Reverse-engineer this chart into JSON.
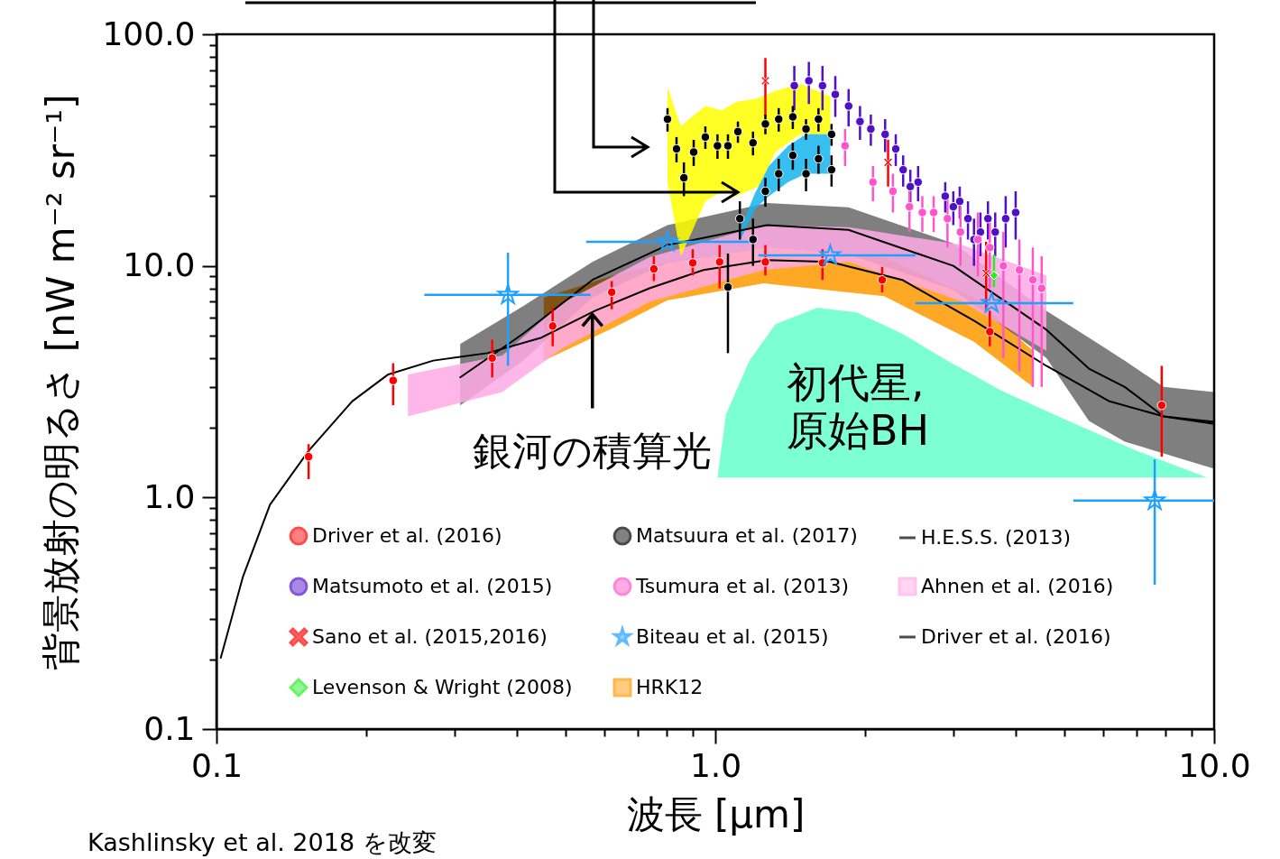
{
  "chart_data": {
    "type": "scatter",
    "xlabel": "波長 [μm]",
    "ylabel": "背景放射の明るさ [nW m⁻² sr⁻¹]",
    "log": "xy",
    "grid": false,
    "legend": "bottom",
    "xlim": [
      0.1,
      10
    ],
    "ylim": [
      0.1,
      100
    ],
    "xticks": [
      {
        "value": 0.1,
        "label": "0.1"
      },
      {
        "value": 0.2,
        "label": null
      },
      {
        "value": 0.3,
        "label": null
      },
      {
        "value": 0.4,
        "label": null
      },
      {
        "value": 0.5,
        "label": null
      },
      {
        "value": 0.6,
        "label": null
      },
      {
        "value": 0.7,
        "label": null
      },
      {
        "value": 0.8,
        "label": null
      },
      {
        "value": 0.9,
        "label": null
      },
      {
        "value": 1,
        "label": "1.0"
      },
      {
        "value": 2,
        "label": null
      },
      {
        "value": 3,
        "label": null
      },
      {
        "value": 4,
        "label": null
      },
      {
        "value": 5,
        "label": null
      },
      {
        "value": 6,
        "label": null
      },
      {
        "value": 7,
        "label": null
      },
      {
        "value": 8,
        "label": null
      },
      {
        "value": 9,
        "label": null
      },
      {
        "value": 10,
        "label": "10.0"
      }
    ],
    "yticks": [
      0.1,
      {
        "value": 0.2,
        "label": null
      },
      {
        "value": 0.3,
        "label": null
      },
      {
        "value": 0.4,
        "label": null
      },
      {
        "value": 0.5,
        "label": null
      },
      {
        "value": 0.6,
        "label": null
      },
      {
        "value": 0.7,
        "label": null
      },
      {
        "value": 0.8,
        "label": null
      },
      {
        "value": 0.9,
        "label": null
      },
      {
        "value": 1,
        "label": "1.0"
      },
      {
        "value": 2,
        "label": null
      },
      {
        "value": 3,
        "label": null
      },
      {
        "value": 4,
        "label": null
      },
      {
        "value": 5,
        "label": null
      },
      {
        "value": 6,
        "label": null
      },
      {
        "value": 7,
        "label": null
      },
      {
        "value": 8,
        "label": null
      },
      {
        "value": 9,
        "label": null
      },
      {
        "value": 10,
        "label": "10.0"
      },
      {
        "value": 20,
        "label": null
      },
      {
        "value": 30,
        "label": null
      },
      {
        "value": 40,
        "label": null
      },
      {
        "value": 50,
        "label": null
      },
      {
        "value": 60,
        "label": null
      },
      {
        "value": 70,
        "label": null
      },
      {
        "value": 80,
        "label": null
      },
      {
        "value": 90,
        "label": null
      },
      {
        "value": 100,
        "label": "100.0"
      }
    ],
    "annotations": [
      {
        "text": "銀河の積算光",
        "x": 0.567,
        "y": 6.4
      },
      "初代星,\n原始BH",
      "Kashlinsky et al. 2018 を改変"
    ],
    "series": [
      {
        "name": "Driver et al. (2016)",
        "marker": "circle",
        "color": "#ff0000",
        "x": [
          0.153,
          0.226,
          0.357,
          0.472,
          0.62,
          0.753,
          0.901,
          1.02,
          1.26,
          1.64,
          2.16,
          3.55,
          7.85
        ],
        "values": [
          1.5,
          3.2,
          4.0,
          5.5,
          7.7,
          9.7,
          10.3,
          10.4,
          10.4,
          10.3,
          8.7,
          5.2,
          2.5
        ],
        "errors": [
          [
            1.2,
            1.7
          ],
          [
            2.5,
            3.8
          ],
          [
            3.3,
            4.8
          ],
          [
            4.5,
            6.6
          ],
          [
            6.5,
            8.6
          ],
          [
            8.6,
            11
          ],
          [
            9.1,
            11.8
          ],
          [
            8.0,
            12.3
          ],
          [
            9.1,
            12.3
          ],
          [
            8.7,
            11.8
          ],
          [
            7.7,
            9.9
          ],
          [
            4.5,
            6.4
          ],
          [
            1.5,
            3.7
          ]
        ]
      },
      {
        "name": "Matsumoto et al. (2015)",
        "marker": "circle",
        "color": "#5010c8",
        "x": [
          1.44,
          1.54,
          1.64,
          1.74,
          1.85,
          1.95,
          2.05,
          2.19,
          2.3,
          2.38,
          2.46,
          2.55,
          2.89,
          3.0,
          3.09,
          3.21,
          3.3,
          3.4,
          3.52,
          3.64,
          3.82,
          4.0
        ],
        "values": [
          60,
          63,
          60,
          55,
          49,
          42,
          39,
          37,
          32,
          26,
          22,
          23,
          20,
          18,
          19,
          16,
          13,
          14,
          16,
          14,
          16,
          17
        ],
        "errors": [
          13,
          13,
          13,
          11,
          9,
          7,
          6,
          6,
          5,
          4,
          4,
          4,
          3,
          3,
          3,
          3,
          3,
          3,
          3,
          3,
          4,
          4
        ]
      },
      {
        "name": "Sano et al. (2015,2016)",
        "marker": "cross",
        "color": "#ff0000",
        "x": [
          1.26,
          2.22,
          3.49
        ],
        "values": [
          63,
          28,
          9.3
        ],
        "errors": [
          [
            44,
            79
          ],
          [
            22,
            35
          ],
          [
            6.4,
            12.7
          ]
        ]
      },
      {
        "name": "Levenson & Wright (2008)",
        "marker": "diamond",
        "color": "#22ee22",
        "x": [
          3.62
        ],
        "values": [
          9.1
        ],
        "errors": [
          [
            8.1,
            11.2
          ]
        ]
      },
      {
        "name": "Matsuura et al. (2017)",
        "marker": "circle",
        "color": "#000000",
        "x": [
          0.802,
          0.836,
          0.865,
          0.905,
          0.955,
          1.01,
          1.06,
          1.11,
          1.19,
          1.26,
          1.34,
          1.43,
          1.52,
          1.61,
          1.71,
          1.06,
          1.12,
          1.19,
          1.26,
          1.34,
          1.43,
          1.52,
          1.61,
          1.71
        ],
        "values": [
          43,
          32,
          24,
          31,
          36,
          33,
          33,
          38,
          34,
          41,
          43,
          44,
          39,
          43,
          37,
          8.1,
          16,
          13,
          21,
          25,
          30,
          25,
          29,
          26
        ],
        "errors": [
          5,
          4,
          4,
          4,
          4,
          4,
          4,
          4,
          4,
          4,
          5,
          5,
          4,
          5,
          4,
          [
            4.2,
            11.3
          ],
          3,
          3,
          3,
          4,
          4,
          4,
          4,
          4
        ]
      },
      {
        "name": "Tsumura et al. (2013)",
        "marker": "circle",
        "color": "#ff55cc",
        "x": [
          1.82,
          2.07,
          2.27,
          2.45,
          2.6,
          2.74,
          2.92,
          3.1,
          3.36,
          3.55,
          3.78,
          4.07,
          4.33,
          4.51
        ],
        "values": [
          33,
          23,
          21,
          18,
          17,
          17,
          16,
          14,
          13,
          12,
          10,
          9.6,
          8.7,
          8.0
        ],
        "errors": [
          6,
          4,
          4,
          4,
          3,
          3,
          4,
          4,
          4,
          4,
          [
            4,
            14
          ],
          [
            3.5,
            13
          ],
          [
            3,
            12
          ],
          [
            3,
            11
          ]
        ]
      },
      {
        "name": "Biteau et al. (2015)",
        "marker": "star",
        "color": "#1fa0ff",
        "x": [
          0.384,
          0.802,
          1.7,
          3.58,
          7.6
        ],
        "values": [
          7.5,
          12.7,
          11.1,
          6.9,
          0.97
        ],
        "errors": [
          [
            3.7,
            11.4
          ],
          null,
          null,
          null,
          [
            0.42,
            1.46
          ]
        ],
        "xerrors": [
          [
            0.261,
            0.562
          ],
          [
            0.551,
            1.17
          ],
          [
            1.22,
            2.52
          ],
          [
            2.52,
            5.22
          ],
          [
            5.22,
            10
          ]
        ]
      },
      {
        "name": "HRK12",
        "type": "line",
        "color": "#ff9900",
        "x": [
          0.453,
          0.625,
          0.802,
          1.25,
          2.18,
          3.3,
          4.33
        ],
        "values": [
          null,
          null,
          null,
          null,
          null,
          null,
          null
        ],
        "lower": [
          3.9,
          5.4,
          7.1,
          8.4,
          7.4,
          4.7,
          3.0
        ],
        "upper": [
          7.3,
          9.1,
          10.4,
          12,
          10.9,
          7.3,
          4.3
        ]
      },
      {
        "name": "H.E.S.S. (2013)",
        "type": "line",
        "color": "#000000",
        "x": [
          0.308,
          0.412,
          0.567,
          0.802,
          1.27,
          1.85,
          3.0,
          4.61,
          5.61,
          6.62,
          7.92,
          10
        ],
        "values": [
          3.3,
          5.1,
          8.7,
          12.3,
          15,
          14.3,
          10,
          5.3,
          3.6,
          3.0,
          2.24,
          2.08
        ],
        "lower": [
          2.5,
          3.9,
          7.3,
          10.3,
          12,
          11.2,
          7.9,
          4.0,
          2.14,
          1.74,
          1.55,
          1.33
        ],
        "upper": [
          4.6,
          6.7,
          10.4,
          15,
          18.7,
          17.9,
          12.5,
          6.4,
          4.9,
          3.9,
          3.0,
          2.85
        ]
      },
      {
        "name": "Ahnen et al. (2016)",
        "type": "line",
        "color": "#ffaae6",
        "x": [
          0.242,
          0.374,
          0.493,
          0.738,
          1.25,
          1.85,
          3.13,
          4.61
        ],
        "values": [
          null,
          null,
          null,
          null,
          null,
          null,
          null,
          null
        ],
        "lower": [
          2.24,
          2.85,
          4.4,
          7.0,
          9.6,
          10.4,
          7.0,
          4.3
        ],
        "upper": [
          3.4,
          4.1,
          6.9,
          10.9,
          15,
          14.7,
          12.3,
          9.1
        ]
      },
      {
        "name": "Driver et al. (2016)",
        "type": "line",
        "color": "#000000",
        "x": [
          0.102,
          0.113,
          0.128,
          0.153,
          0.187,
          0.221,
          0.272,
          0.349,
          0.448,
          0.574,
          0.738,
          0.947,
          1.27,
          1.7,
          2.37,
          3.3,
          4.61,
          6.17,
          7.92,
          10
        ],
        "values": [
          0.203,
          0.455,
          0.93,
          1.59,
          2.6,
          3.4,
          3.9,
          4.2,
          4.9,
          6.4,
          8.0,
          9.6,
          10.6,
          10.4,
          8.7,
          5.8,
          3.7,
          2.6,
          2.24,
          2.12
        ]
      },
      {
        "type": "line",
        "color": "#ffff00",
        "x": [
          0.802,
          0.853,
          0.897,
          0.955,
          1.03,
          1.1,
          1.22,
          1.32,
          1.48,
          1.7
        ],
        "values": [
          null,
          null,
          null,
          null,
          null,
          null,
          null,
          null,
          null,
          null
        ],
        "lower": [
          23,
          11,
          14,
          19,
          21,
          20,
          22,
          31,
          37,
          37
        ],
        "upper": [
          59,
          40,
          44,
          49,
          47,
          51,
          53,
          57,
          61,
          54
        ]
      },
      {
        "type": "line",
        "color": "#14b4f0",
        "x": [
          1.12,
          1.2,
          1.28,
          1.4,
          1.52,
          1.7
        ],
        "values": [
          null,
          null,
          null,
          null,
          null,
          null
        ],
        "lower": [
          12.8,
          17.6,
          20,
          23,
          25,
          25
        ],
        "upper": [
          14.3,
          20.5,
          27,
          33,
          37,
          37
        ]
      },
      {
        "type": "line",
        "color": "#66ffcc",
        "x": [
          1.01,
          1.05,
          1.17,
          1.32,
          1.6,
          1.92,
          2.37,
          2.92,
          3.74,
          5.01,
          7.0,
          9.68
        ],
        "values": [
          null,
          null,
          null,
          null,
          null,
          null,
          null,
          null,
          null,
          null,
          null,
          null
        ],
        "lower": [
          1.22,
          1.22,
          1.22,
          1.22,
          1.22,
          1.22,
          1.22,
          1.22,
          1.22,
          1.22,
          1.22,
          1.22
        ],
        "upper": [
          1.22,
          2.28,
          3.9,
          5.6,
          6.6,
          6.3,
          5.1,
          3.9,
          2.9,
          2.18,
          1.59,
          1.22
        ]
      }
    ]
  }
}
